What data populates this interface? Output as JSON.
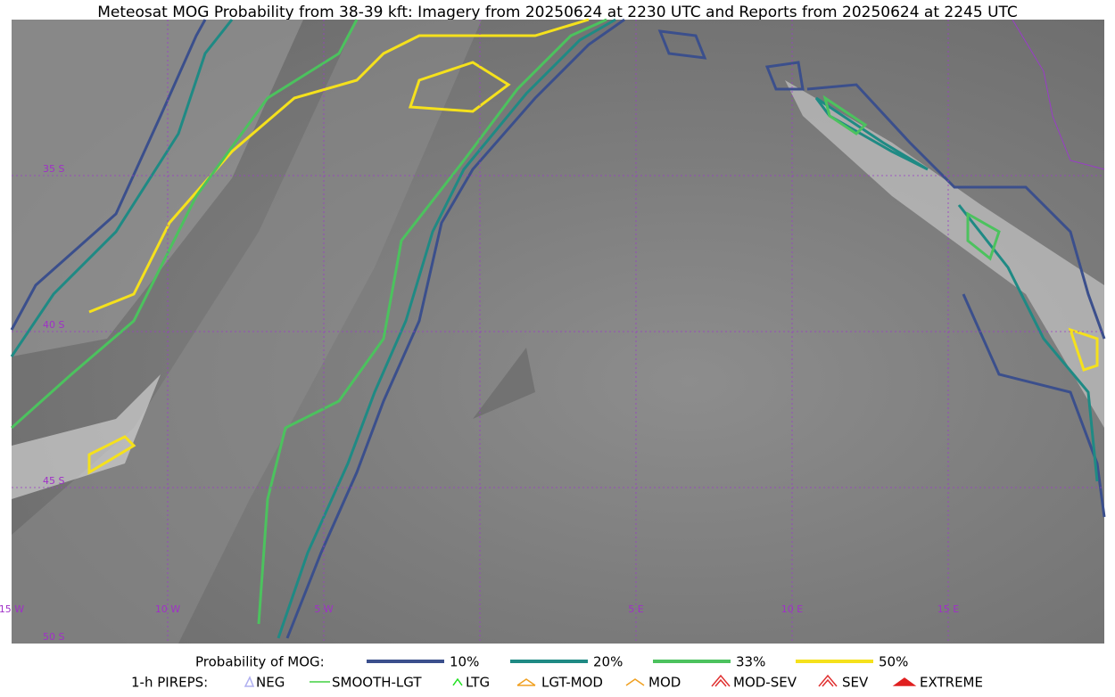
{
  "header": {
    "title": "Meteosat MOG Probability from 38-39 kft: Imagery from 20250624 at 2230 UTC and Reports from 20250624 at 2245 UTC"
  },
  "map": {
    "lat_labels": [
      "35 S",
      "40 S",
      "45 S",
      "50 S"
    ],
    "lon_labels": [
      "15 W",
      "10 W",
      "5 W",
      "5 E",
      "10 E",
      "15 E"
    ]
  },
  "legend": {
    "probability": {
      "label": "Probability of MOG:",
      "items": [
        {
          "name": "10%",
          "color": "#3b4f8c"
        },
        {
          "name": "20%",
          "color": "#1f8a84"
        },
        {
          "name": "33%",
          "color": "#4cc25e"
        },
        {
          "name": "50%",
          "color": "#f5e11c"
        }
      ]
    },
    "pireps": {
      "label": "1-h PIREPS:",
      "items": [
        "NEG",
        "SMOOTH-LGT",
        "LTG",
        "LGT-MOD",
        "MOD",
        "MOD-SEV",
        "SEV",
        "EXTREME"
      ]
    }
  }
}
